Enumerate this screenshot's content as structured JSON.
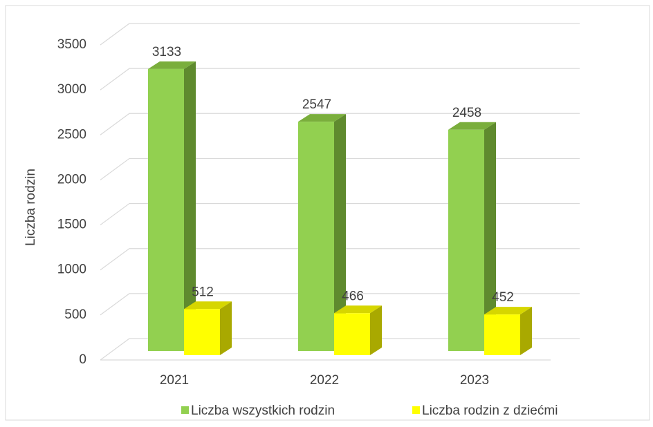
{
  "chart_data": {
    "type": "bar",
    "categories": [
      "2021",
      "2022",
      "2023"
    ],
    "series": [
      {
        "name": "Liczba wszystkich rodzin",
        "color": "#92d050",
        "top": "#7aae3c",
        "side": "#5f8a2e",
        "values": [
          3133,
          2547,
          2458
        ]
      },
      {
        "name": "Liczba rodzin z dziećmi",
        "color": "#ffff00",
        "top": "#d6d600",
        "side": "#a9a900",
        "values": [
          512,
          466,
          452
        ]
      }
    ],
    "y_axis_label": "Liczba rodzin",
    "ylim": [
      0,
      3500
    ],
    "yticks": [
      0,
      500,
      1000,
      1500,
      2000,
      2500,
      3000,
      3500
    ],
    "grid": true,
    "legend": "bottom"
  }
}
